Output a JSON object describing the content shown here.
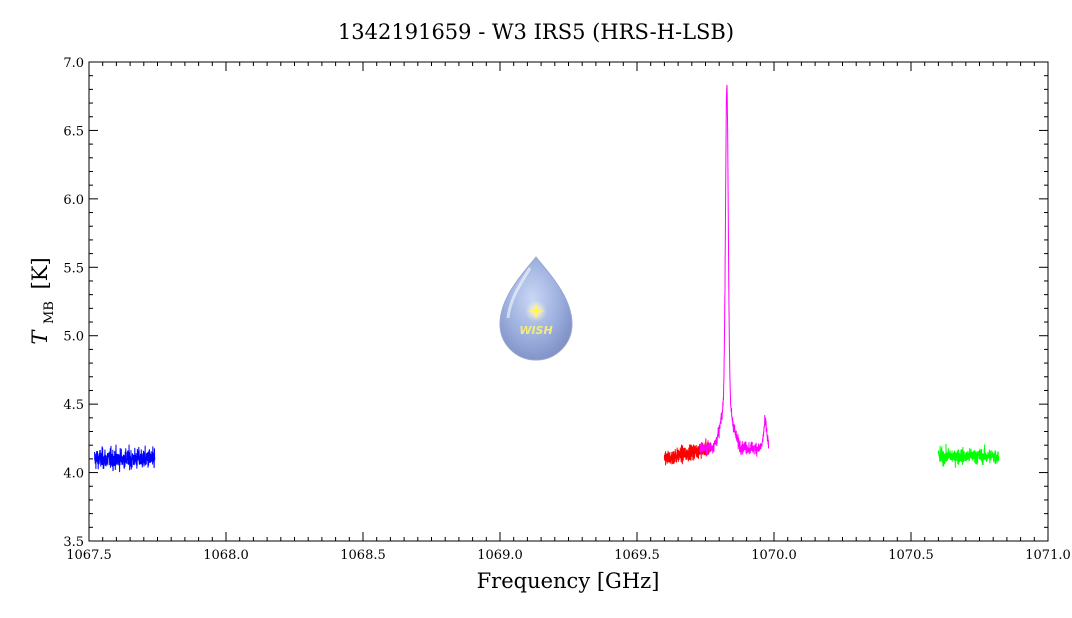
{
  "chart_data": {
    "type": "line",
    "title": "1342191659 - W3 IRS5 (HRS-H-LSB)",
    "xlabel": "Frequency [GHz]",
    "ylabel_main": "T",
    "ylabel_sub": "MB",
    "ylabel_unit": "[K]",
    "xlim": [
      1067.5,
      1071.0
    ],
    "ylim": [
      3.5,
      7.0
    ],
    "x_ticks": [
      "1067.5",
      "1068.0",
      "1068.5",
      "1069.0",
      "1069.5",
      "1070.0",
      "1070.5",
      "1071.0"
    ],
    "y_ticks": [
      "3.5",
      "4.0",
      "4.5",
      "5.0",
      "5.5",
      "6.0",
      "6.5",
      "7.0"
    ],
    "x_tick_values": [
      1067.5,
      1068.0,
      1068.5,
      1069.0,
      1069.5,
      1070.0,
      1070.5,
      1071.0
    ],
    "y_tick_values": [
      3.5,
      4.0,
      4.5,
      5.0,
      5.5,
      6.0,
      6.5,
      7.0
    ],
    "grid": false,
    "logo_text": "WISH",
    "series": [
      {
        "color": "#0000ff",
        "x_range": [
          1067.52,
          1067.74
        ],
        "baseline": 4.1,
        "noise": 0.08,
        "features": []
      },
      {
        "color": "#ff0000",
        "x_range": [
          1069.6,
          1069.77
        ],
        "baseline": 4.1,
        "noise": 0.06,
        "slope": 0.5,
        "features": []
      },
      {
        "color": "#ff00ff",
        "x_range": [
          1069.73,
          1069.98
        ],
        "baseline": 4.18,
        "noise": 0.05,
        "features": [
          {
            "center": 1069.828,
            "height": 2.3,
            "width": 0.005
          },
          {
            "center": 1069.828,
            "height": 0.35,
            "width": 0.02
          },
          {
            "center": 1069.968,
            "height": 0.18,
            "width": 0.006
          }
        ]
      },
      {
        "color": "#00ff00",
        "x_range": [
          1070.6,
          1070.82
        ],
        "baseline": 4.12,
        "noise": 0.06,
        "features": []
      }
    ]
  }
}
